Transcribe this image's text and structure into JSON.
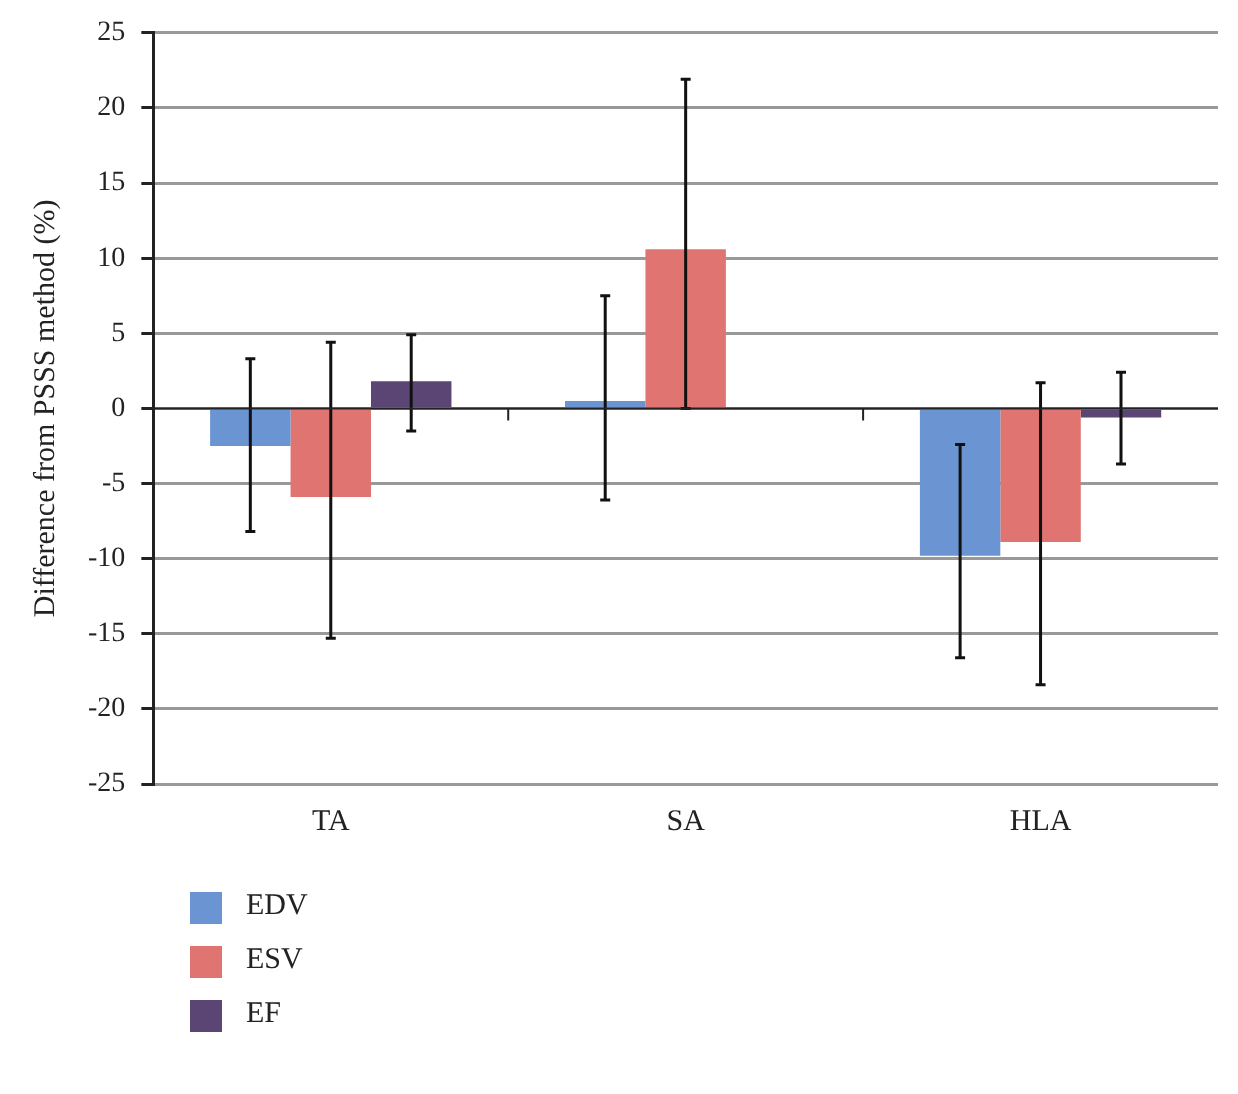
{
  "chart_data": {
    "type": "bar",
    "ylabel": "Difference from PSSS method (%)",
    "categories": [
      "TA",
      "SA",
      "HLA"
    ],
    "series": [
      {
        "name": "EDV",
        "color": "#6a95d2",
        "values": [
          -2.5,
          0.5,
          -9.8
        ],
        "errors": [
          [
            -8.2,
            3.3
          ],
          [
            -6.1,
            7.5
          ],
          [
            -16.6,
            -2.4
          ]
        ]
      },
      {
        "name": "ESV",
        "color": "#e07470",
        "values": [
          -5.9,
          10.6,
          -8.9
        ],
        "errors": [
          [
            -15.3,
            4.4
          ],
          [
            0,
            21.9
          ],
          [
            -18.4,
            1.7
          ]
        ]
      },
      {
        "name": "EF",
        "color": "#5a4575",
        "values": [
          1.8,
          null,
          -0.6
        ],
        "errors": [
          [
            -1.5,
            4.9
          ],
          null,
          [
            -3.7,
            2.4
          ]
        ]
      }
    ],
    "ylim": [
      -25,
      25
    ],
    "yticks": [
      -25,
      -20,
      -15,
      -10,
      -5,
      0,
      5,
      10,
      15,
      20,
      25
    ],
    "grid": "y",
    "legend": "bottom left"
  }
}
